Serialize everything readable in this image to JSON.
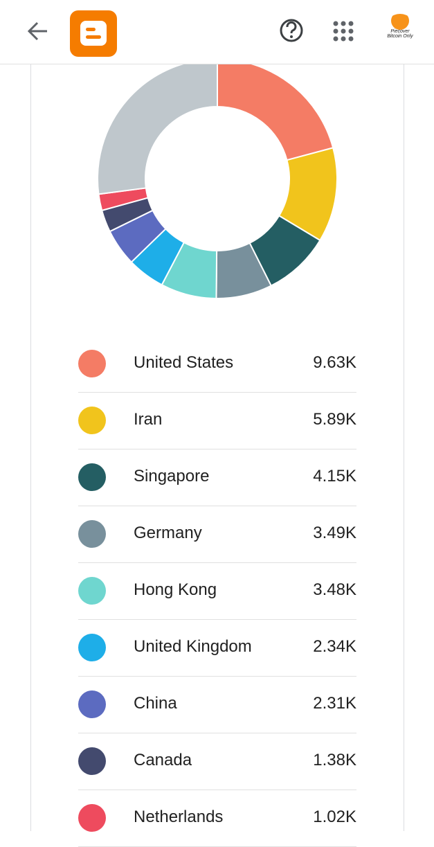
{
  "header": {
    "avatar_text": "Piecover Bitcoin Only"
  },
  "chart_data": {
    "type": "pie",
    "categories": [
      "United States",
      "Iran",
      "Singapore",
      "Germany",
      "Hong Kong",
      "United Kingdom",
      "China",
      "Canada",
      "Netherlands",
      null
    ],
    "values": [
      9630,
      5890,
      4150,
      3490,
      3480,
      2340,
      2310,
      1380,
      1020,
      12500
    ],
    "value_labels": [
      "9.63K",
      "5.89K",
      "4.15K",
      "3.49K",
      "3.48K",
      "2.34K",
      "2.31K",
      "1.38K",
      "1.02K",
      null
    ],
    "colors": [
      "#f47c65",
      "#f1c41c",
      "#245e63",
      "#78909c",
      "#6fd6cf",
      "#1eaee8",
      "#5c6bc0",
      "#434a6e",
      "#ee4b5e",
      "#bfc7cc"
    ]
  }
}
